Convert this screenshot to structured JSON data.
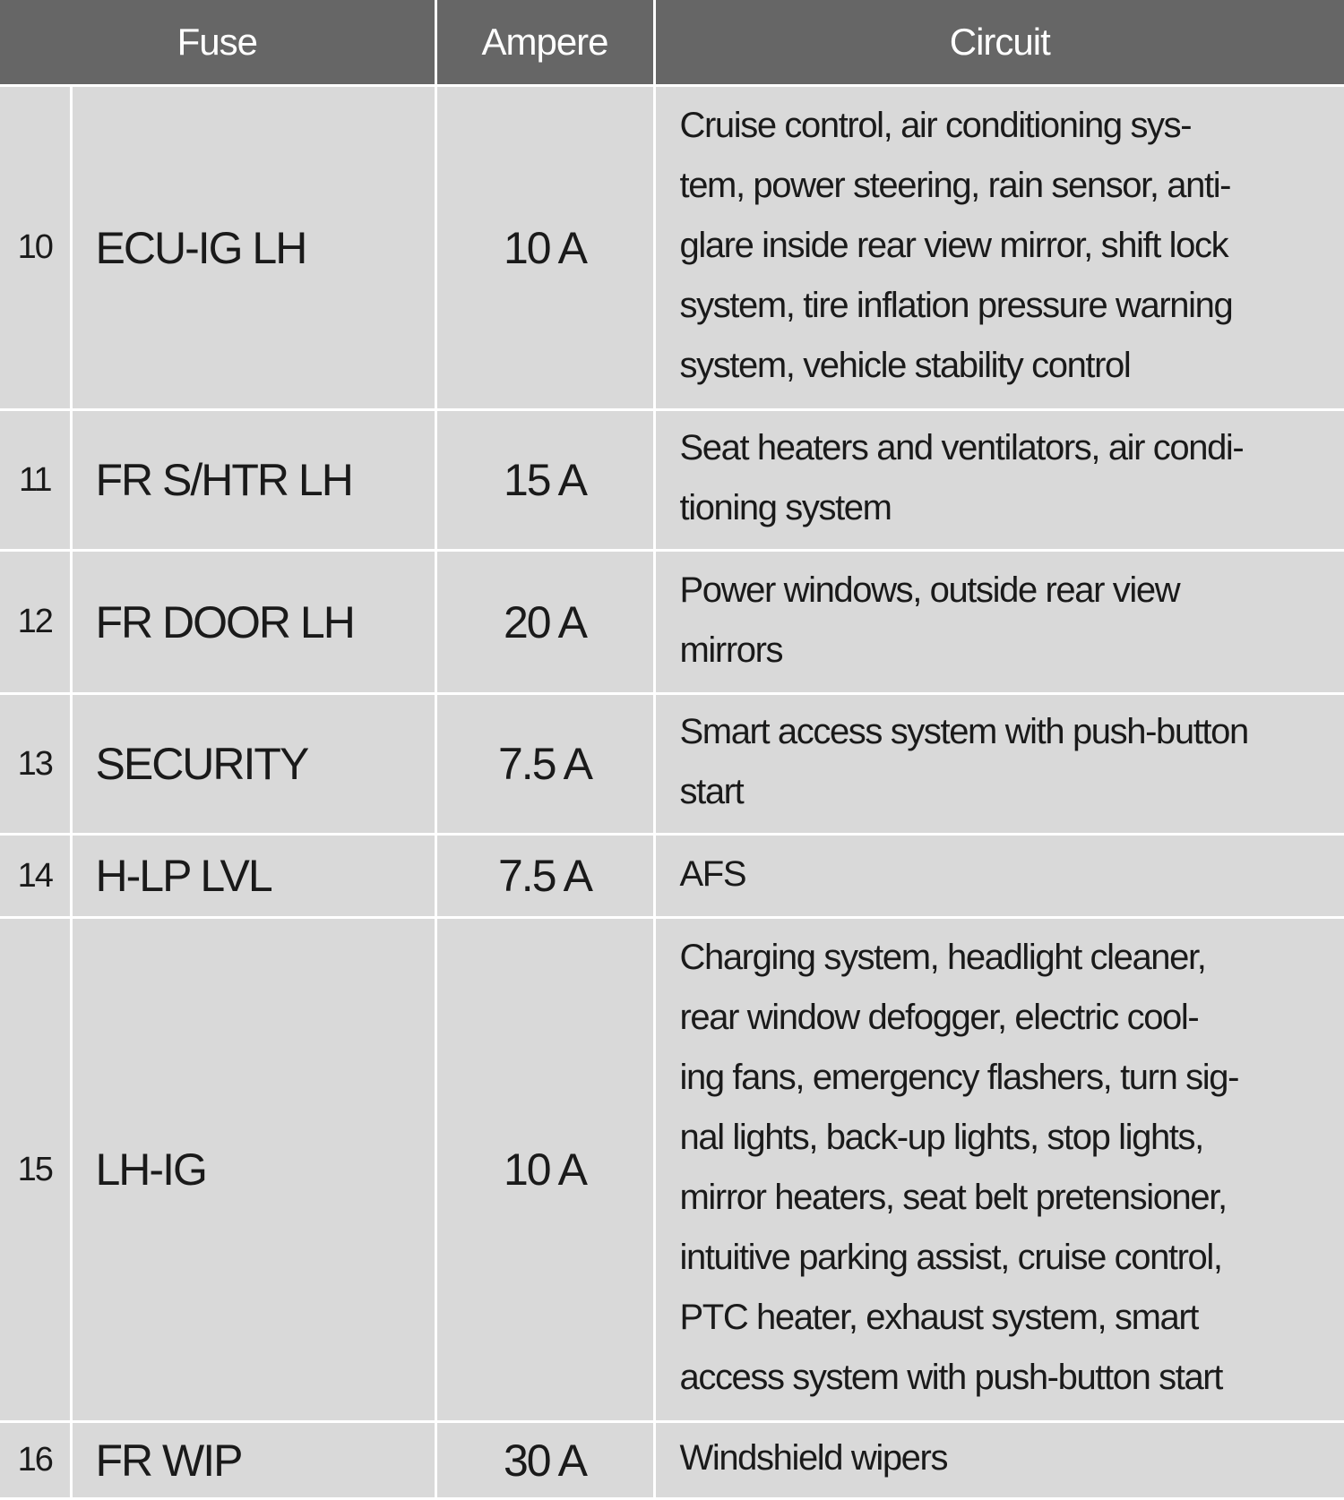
{
  "headers": {
    "fuse": "Fuse",
    "ampere": "Ampere",
    "circuit": "Circuit"
  },
  "rows": [
    {
      "num": "10",
      "name": "ECU-IG LH",
      "ampere": "10 A",
      "circuit": [
        "Cruise control, air conditioning sys-",
        "tem, power steering, rain sensor, anti-",
        "glare inside rear view mirror, shift lock",
        "system, tire inflation pressure warning",
        "system, vehicle stability control"
      ]
    },
    {
      "num": "11",
      "name": "FR S/HTR LH",
      "ampere": "15 A",
      "circuit": [
        "Seat heaters and ventilators, air condi-",
        "tioning system"
      ]
    },
    {
      "num": "12",
      "name": "FR DOOR LH",
      "ampere": "20 A",
      "circuit": [
        "Power windows, outside rear view",
        "mirrors"
      ]
    },
    {
      "num": "13",
      "name": "SECURITY",
      "ampere": "7.5 A",
      "circuit": [
        "Smart access system with push-button",
        "start"
      ]
    },
    {
      "num": "14",
      "name": "H-LP LVL",
      "ampere": "7.5 A",
      "circuit": [
        "AFS"
      ]
    },
    {
      "num": "15",
      "name": "LH-IG",
      "ampere": "10 A",
      "circuit": [
        "Charging system, headlight cleaner,",
        "rear window defogger, electric cool-",
        "ing fans, emergency flashers, turn sig-",
        "nal lights, back-up lights, stop lights,",
        "mirror heaters, seat belt pretensioner,",
        "intuitive parking assist, cruise control,",
        "PTC heater, exhaust system, smart",
        "access system with push-button start"
      ]
    },
    {
      "num": "16",
      "name": "FR WIP",
      "ampere": "30 A",
      "circuit": [
        "Windshield wipers"
      ]
    }
  ]
}
